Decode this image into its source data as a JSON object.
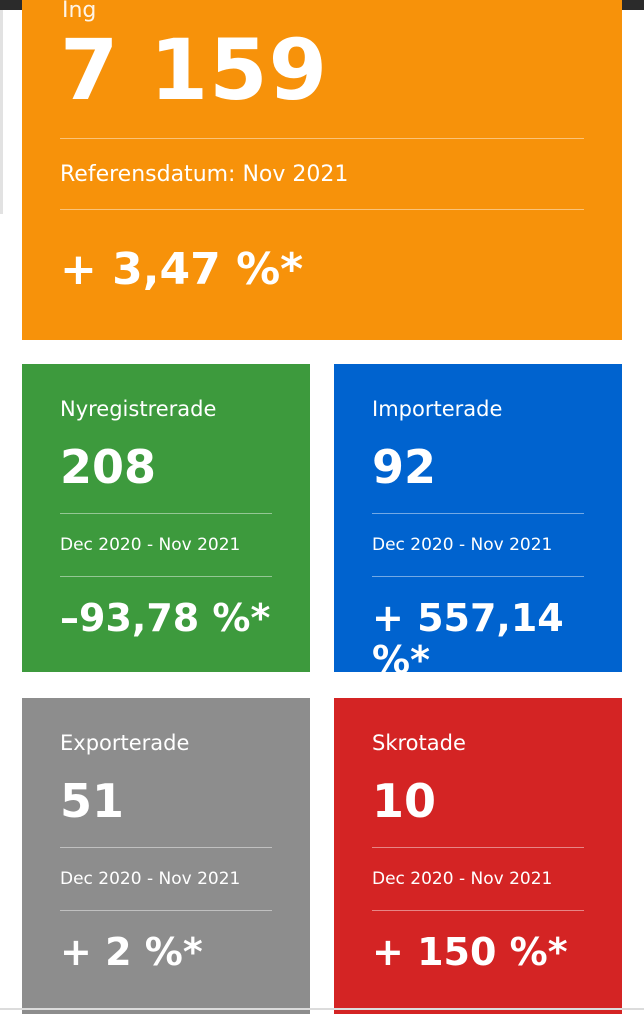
{
  "hero": {
    "label": "Ing",
    "value": "7 159",
    "date": "Referensdatum: Nov 2021",
    "change": "+ 3,47 %*",
    "color": "#f7920a"
  },
  "cards": [
    {
      "label": "Nyregistrerade",
      "value": "208",
      "date": "Dec 2020 - Nov 2021",
      "change": "–93,78 %*",
      "color": "#3d9a3d"
    },
    {
      "label": "Importerade",
      "value": "92",
      "date": "Dec 2020 - Nov 2021",
      "change": "+ 557,14 %*",
      "color": "#0063cf"
    },
    {
      "label": "Exporterade",
      "value": "51",
      "date": "Dec 2020 - Nov 2021",
      "change": "+ 2 %*",
      "color": "#8d8d8d"
    },
    {
      "label": "Skrotade",
      "value": "10",
      "date": "Dec 2020 - Nov 2021",
      "change": "+ 150 %*",
      "color": "#d42424"
    }
  ]
}
